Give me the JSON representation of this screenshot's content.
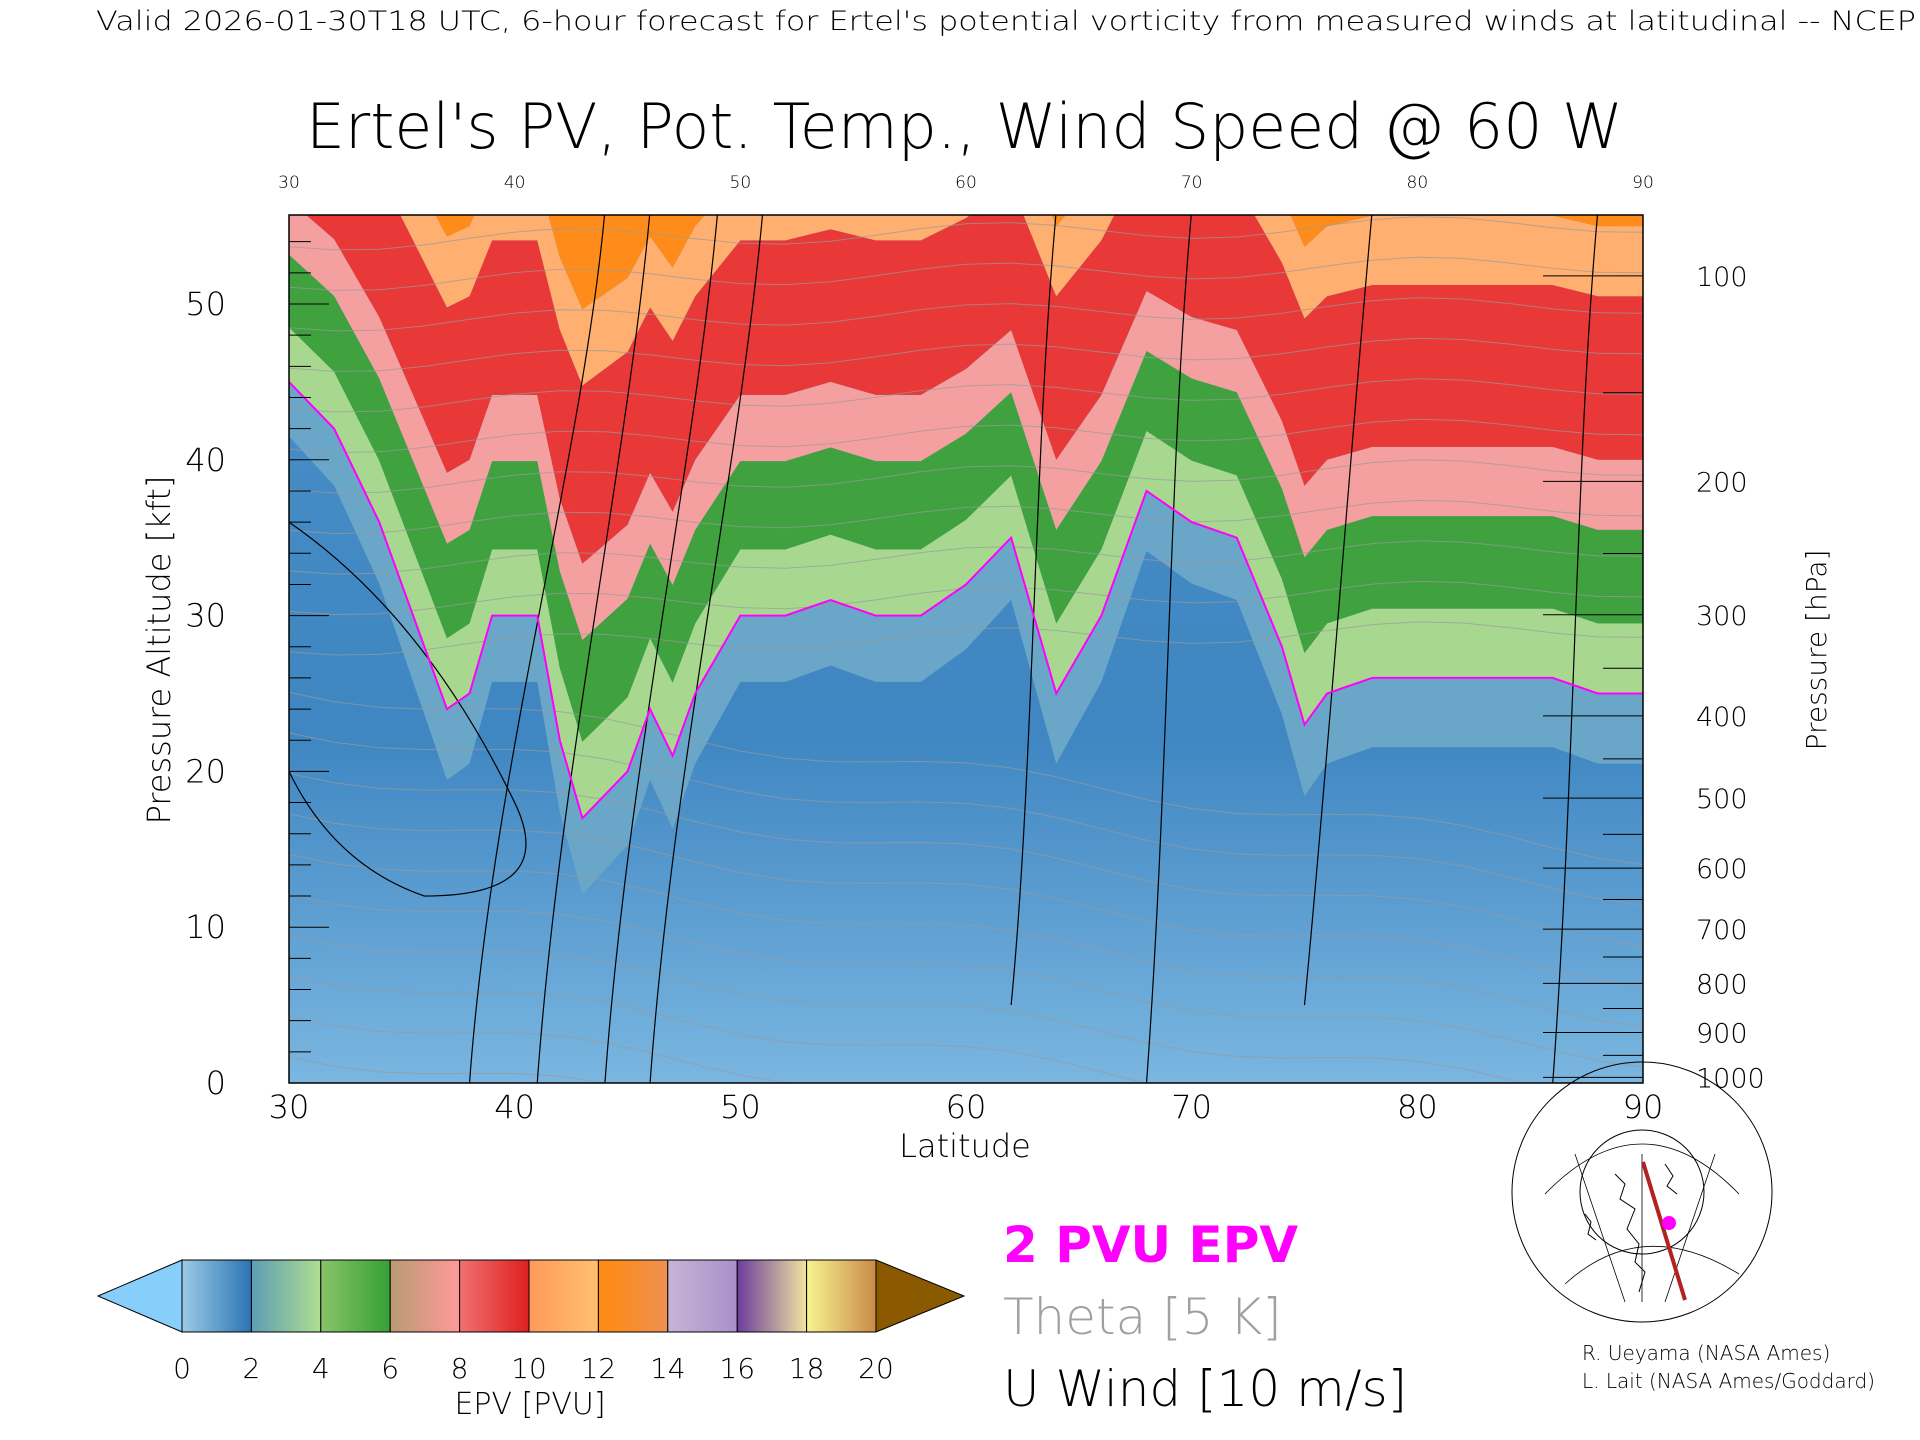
{
  "header": {
    "top_line": "Valid 2026-01-30T18 UTC, 6-hour forecast for Ertel's potential vorticity from measured winds at latitudinal -- NCEP"
  },
  "chart_data": {
    "type": "heatmap",
    "title": "Ertel's PV, Pot. Temp., Wind Speed @ 60 W",
    "xlabel": "Latitude",
    "ylabel": "Pressure Altitude [kft]",
    "y2label": "Pressure [hPa]",
    "xlim": [
      30,
      90
    ],
    "ylim": [
      0,
      55.7
    ],
    "x_ticks": [
      "30",
      "40",
      "50",
      "60",
      "70",
      "80",
      "90"
    ],
    "y_ticks": [
      "0",
      "10",
      "20",
      "30",
      "40",
      "50"
    ],
    "pressure_ticks": [
      "100",
      "200",
      "300",
      "400",
      "500",
      "600",
      "700",
      "800",
      "900",
      "1000"
    ],
    "tropopause_2pvu": {
      "lat": [
        30,
        32,
        34,
        36,
        37,
        38,
        39,
        41,
        42,
        43,
        45,
        46,
        47,
        48,
        50,
        52,
        54,
        56,
        58,
        60,
        62,
        64,
        66,
        68,
        70,
        72,
        74,
        75,
        76,
        78,
        80,
        82,
        84,
        86,
        88,
        90
      ],
      "kft": [
        45,
        42,
        36,
        28,
        24,
        25,
        30,
        30,
        22,
        17,
        20,
        24,
        21,
        25,
        30,
        30,
        31,
        30,
        30,
        32,
        35,
        25,
        30,
        38,
        36,
        35,
        28,
        23,
        25,
        26,
        26,
        26,
        26,
        26,
        25,
        25
      ]
    },
    "colorbar": {
      "label": "EPV [PVU]",
      "ticks": [
        "0",
        "2",
        "4",
        "6",
        "8",
        "10",
        "12",
        "14",
        "16",
        "18",
        "20"
      ],
      "segments": [
        [
          "#9ccbe6",
          "#2a74b4"
        ],
        [
          "#5c9eb4",
          "#b0de90"
        ],
        [
          "#88c468",
          "#36a036"
        ],
        [
          "#b89a72",
          "#ff9a9a"
        ],
        [
          "#f07070",
          "#e02020"
        ],
        [
          "#ff9a5a",
          "#ffc070"
        ],
        [
          "#ff8a10",
          "#f09050"
        ],
        [
          "#c8b4d8",
          "#a890c8"
        ],
        [
          "#6c3c9c",
          "#f0e4a0"
        ],
        [
          "#f8f490",
          "#c88a48"
        ]
      ],
      "under_color": "#87cefa",
      "over_color": "#8b5a00"
    },
    "legend": {
      "epv": "2 PVU EPV",
      "theta": "Theta [5 K]",
      "wind": "U Wind [10 m/s]",
      "epv_color": "#ff00ff",
      "theta_color": "#a0a0a0",
      "wind_color": "#000000"
    }
  },
  "credits": {
    "line1": "R. Ueyama (NASA Ames)",
    "line2": "L. Lait (NASA Ames/Goddard)"
  }
}
